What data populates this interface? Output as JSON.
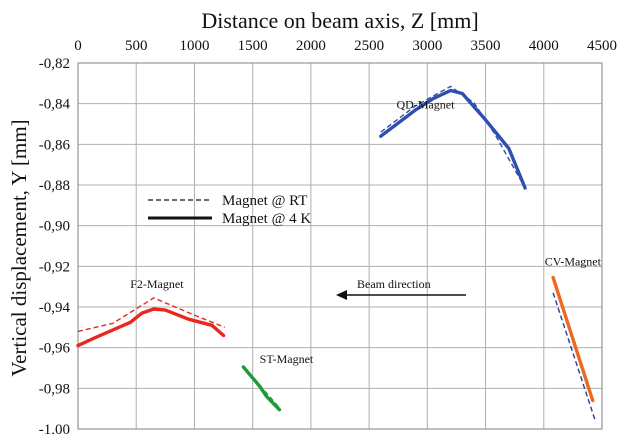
{
  "chart_data": {
    "type": "line",
    "xlabel": "Distance on beam axis, Z [mm]",
    "ylabel": "Vertical displacement, Y [mm]",
    "xlim": [
      0,
      4500
    ],
    "ylim": [
      -1.0,
      -0.82
    ],
    "x_axis_position": "top",
    "grid": true,
    "x_ticks": [
      "0",
      "500",
      "1000",
      "1500",
      "2000",
      "2500",
      "3000",
      "3500",
      "4000",
      "4500"
    ],
    "y_ticks": [
      "-0,82",
      "-0,84",
      "-0,86",
      "-0,88",
      "-0,90",
      "-0,92",
      "-0,94",
      "-0,96",
      "-0,98",
      "-1,00"
    ],
    "legend": {
      "placement": "left-middle",
      "entries": [
        {
          "label": "Magnet @ RT",
          "style": "dashed"
        },
        {
          "label": "Magnet @ 4 K",
          "style": "solid"
        }
      ]
    },
    "annotations": {
      "beam_direction": "Beam direction"
    },
    "magnets": [
      {
        "label": "F2-Magnet",
        "color": "#e8281e",
        "rt": [
          [
            0,
            -0.952
          ],
          [
            300,
            -0.948
          ],
          [
            650,
            -0.9355
          ],
          [
            1000,
            -0.944
          ],
          [
            1260,
            -0.95
          ]
        ],
        "cold": [
          [
            0,
            -0.959
          ],
          [
            150,
            -0.955
          ],
          [
            450,
            -0.9475
          ],
          [
            550,
            -0.943
          ],
          [
            650,
            -0.941
          ],
          [
            750,
            -0.9415
          ],
          [
            950,
            -0.946
          ],
          [
            1150,
            -0.949
          ],
          [
            1250,
            -0.954
          ]
        ]
      },
      {
        "label": "ST-Magnet",
        "color": "#1e9a3c",
        "rt": [
          [
            1420,
            -0.9695
          ],
          [
            1730,
            -0.9895
          ]
        ],
        "cold": [
          [
            1420,
            -0.9695
          ],
          [
            1560,
            -0.979
          ],
          [
            1620,
            -0.984
          ],
          [
            1730,
            -0.9905
          ]
        ]
      },
      {
        "label": "QD-Magnet",
        "color": "#2f4fb0",
        "rt": [
          [
            2600,
            -0.854
          ],
          [
            2900,
            -0.841
          ],
          [
            3200,
            -0.8315
          ],
          [
            3400,
            -0.8395
          ],
          [
            3580,
            -0.855
          ],
          [
            3840,
            -0.8815
          ]
        ],
        "cold": [
          [
            2600,
            -0.856
          ],
          [
            2900,
            -0.843
          ],
          [
            3050,
            -0.8375
          ],
          [
            3200,
            -0.8335
          ],
          [
            3300,
            -0.835
          ],
          [
            3500,
            -0.848
          ],
          [
            3700,
            -0.862
          ],
          [
            3840,
            -0.8815
          ]
        ]
      },
      {
        "label": "CV-Magnet",
        "color": "#ec6a20",
        "rt": [
          [
            4080,
            -0.933
          ],
          [
            4440,
            -0.9955
          ]
        ],
        "cold": [
          [
            4080,
            -0.9255
          ],
          [
            4420,
            -0.986
          ]
        ],
        "rt_color": "#2a3e8e"
      }
    ]
  }
}
